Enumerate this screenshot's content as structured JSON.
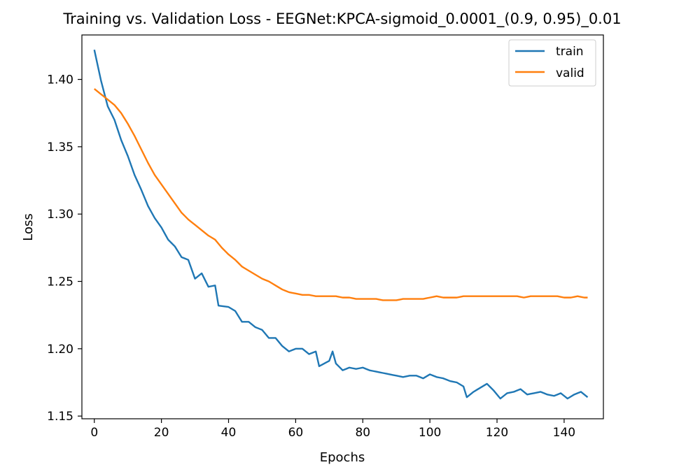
{
  "chart_data": {
    "type": "line",
    "title": "Training vs. Validation Loss - EEGNet:KPCA-sigmoid_0.0001_(0.9, 0.95)_0.01",
    "xlabel": "Epochs",
    "ylabel": "Loss",
    "xlim": [
      -3.7,
      151.7
    ],
    "ylim": [
      1.148,
      1.433
    ],
    "xticks": [
      0,
      20,
      40,
      60,
      80,
      100,
      120,
      140
    ],
    "yticks": [
      1.15,
      1.2,
      1.25,
      1.3,
      1.35,
      1.4
    ],
    "ytick_labels": [
      "1.15",
      "1.20",
      "1.25",
      "1.30",
      "1.35",
      "1.40"
    ],
    "grid": false,
    "legend_position": "top-right",
    "series": [
      {
        "name": "train",
        "color": "#1f77b4",
        "anchors": [
          [
            0,
            1.422
          ],
          [
            2,
            1.399
          ],
          [
            4,
            1.38
          ],
          [
            6,
            1.37
          ],
          [
            8,
            1.355
          ],
          [
            10,
            1.343
          ],
          [
            12,
            1.329
          ],
          [
            14,
            1.318
          ],
          [
            16,
            1.306
          ],
          [
            18,
            1.297
          ],
          [
            20,
            1.29
          ],
          [
            22,
            1.281
          ],
          [
            24,
            1.276
          ],
          [
            26,
            1.268
          ],
          [
            28,
            1.266
          ],
          [
            30,
            1.252
          ],
          [
            32,
            1.256
          ],
          [
            34,
            1.246
          ],
          [
            36,
            1.247
          ],
          [
            37,
            1.232
          ],
          [
            40,
            1.231
          ],
          [
            42,
            1.228
          ],
          [
            44,
            1.22
          ],
          [
            46,
            1.22
          ],
          [
            48,
            1.216
          ],
          [
            50,
            1.214
          ],
          [
            52,
            1.208
          ],
          [
            54,
            1.208
          ],
          [
            56,
            1.202
          ],
          [
            58,
            1.198
          ],
          [
            60,
            1.2
          ],
          [
            62,
            1.2
          ],
          [
            64,
            1.196
          ],
          [
            66,
            1.198
          ],
          [
            67,
            1.187
          ],
          [
            70,
            1.191
          ],
          [
            71,
            1.198
          ],
          [
            72,
            1.189
          ],
          [
            74,
            1.184
          ],
          [
            76,
            1.186
          ],
          [
            78,
            1.185
          ],
          [
            80,
            1.186
          ],
          [
            82,
            1.184
          ],
          [
            84,
            1.183
          ],
          [
            86,
            1.182
          ],
          [
            88,
            1.181
          ],
          [
            90,
            1.18
          ],
          [
            92,
            1.179
          ],
          [
            94,
            1.18
          ],
          [
            96,
            1.18
          ],
          [
            98,
            1.178
          ],
          [
            100,
            1.181
          ],
          [
            102,
            1.179
          ],
          [
            104,
            1.178
          ],
          [
            106,
            1.176
          ],
          [
            108,
            1.175
          ],
          [
            110,
            1.172
          ],
          [
            111,
            1.164
          ],
          [
            113,
            1.168
          ],
          [
            115,
            1.171
          ],
          [
            117,
            1.174
          ],
          [
            119,
            1.169
          ],
          [
            121,
            1.163
          ],
          [
            123,
            1.167
          ],
          [
            125,
            1.168
          ],
          [
            127,
            1.17
          ],
          [
            129,
            1.166
          ],
          [
            131,
            1.167
          ],
          [
            133,
            1.168
          ],
          [
            135,
            1.166
          ],
          [
            137,
            1.165
          ],
          [
            139,
            1.167
          ],
          [
            141,
            1.163
          ],
          [
            143,
            1.166
          ],
          [
            145,
            1.168
          ],
          [
            147,
            1.164
          ]
        ]
      },
      {
        "name": "valid",
        "color": "#ff7f0e",
        "anchors": [
          [
            0,
            1.393
          ],
          [
            2,
            1.389
          ],
          [
            4,
            1.385
          ],
          [
            6,
            1.381
          ],
          [
            8,
            1.375
          ],
          [
            10,
            1.367
          ],
          [
            12,
            1.358
          ],
          [
            14,
            1.348
          ],
          [
            16,
            1.338
          ],
          [
            18,
            1.329
          ],
          [
            20,
            1.322
          ],
          [
            22,
            1.315
          ],
          [
            24,
            1.308
          ],
          [
            26,
            1.301
          ],
          [
            28,
            1.296
          ],
          [
            30,
            1.292
          ],
          [
            32,
            1.288
          ],
          [
            34,
            1.284
          ],
          [
            36,
            1.281
          ],
          [
            38,
            1.275
          ],
          [
            40,
            1.27
          ],
          [
            42,
            1.266
          ],
          [
            44,
            1.261
          ],
          [
            46,
            1.258
          ],
          [
            48,
            1.255
          ],
          [
            50,
            1.252
          ],
          [
            52,
            1.25
          ],
          [
            54,
            1.247
          ],
          [
            56,
            1.244
          ],
          [
            58,
            1.242
          ],
          [
            60,
            1.241
          ],
          [
            62,
            1.24
          ],
          [
            64,
            1.24
          ],
          [
            66,
            1.239
          ],
          [
            68,
            1.239
          ],
          [
            70,
            1.239
          ],
          [
            72,
            1.239
          ],
          [
            74,
            1.238
          ],
          [
            76,
            1.238
          ],
          [
            78,
            1.237
          ],
          [
            80,
            1.237
          ],
          [
            82,
            1.237
          ],
          [
            84,
            1.237
          ],
          [
            86,
            1.236
          ],
          [
            88,
            1.236
          ],
          [
            90,
            1.236
          ],
          [
            92,
            1.237
          ],
          [
            94,
            1.237
          ],
          [
            96,
            1.237
          ],
          [
            98,
            1.237
          ],
          [
            100,
            1.238
          ],
          [
            102,
            1.239
          ],
          [
            104,
            1.238
          ],
          [
            106,
            1.238
          ],
          [
            108,
            1.238
          ],
          [
            110,
            1.239
          ],
          [
            112,
            1.239
          ],
          [
            114,
            1.239
          ],
          [
            116,
            1.239
          ],
          [
            118,
            1.239
          ],
          [
            120,
            1.239
          ],
          [
            122,
            1.239
          ],
          [
            124,
            1.239
          ],
          [
            126,
            1.239
          ],
          [
            128,
            1.238
          ],
          [
            130,
            1.239
          ],
          [
            132,
            1.239
          ],
          [
            134,
            1.239
          ],
          [
            136,
            1.239
          ],
          [
            138,
            1.239
          ],
          [
            140,
            1.238
          ],
          [
            142,
            1.238
          ],
          [
            144,
            1.239
          ],
          [
            146,
            1.238
          ],
          [
            147,
            1.238
          ]
        ]
      }
    ]
  }
}
